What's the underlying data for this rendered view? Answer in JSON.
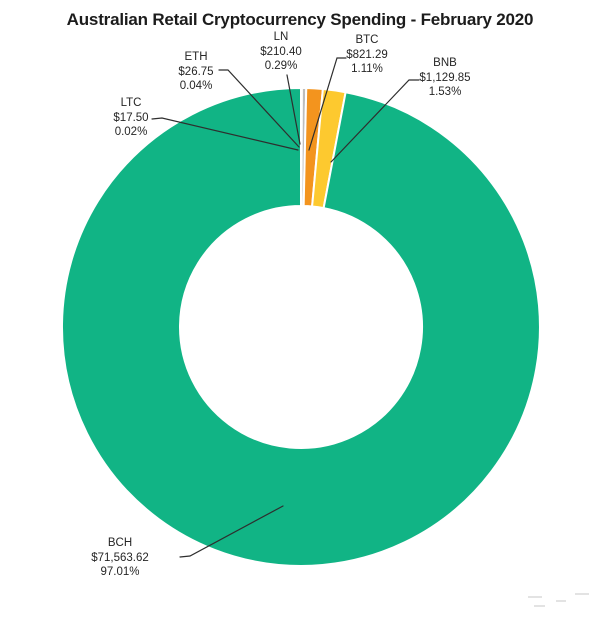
{
  "page": {
    "background": "#ffffff",
    "colors": {
      "text": "#262626",
      "title_text": "#1c1c1c",
      "leader_line": "#2e2e2e",
      "slice_border": "#ffffff"
    }
  },
  "chart_data": {
    "type": "pie",
    "subtype": "donut",
    "title": "Australian Retail Cryptocurrency Spending - February 2020",
    "start_angle_deg": 0,
    "direction": "clockwise",
    "legend": "none",
    "label_style": "callout with name, dollar amount and percent",
    "slices": [
      {
        "name": "LTC",
        "amount_label": "$17.50",
        "value": 17.5,
        "pct": 0.02,
        "pct_label": "0.02%",
        "color": "#d2d2d2"
      },
      {
        "name": "ETH",
        "amount_label": "$26.75",
        "value": 26.75,
        "pct": 0.04,
        "pct_label": "0.04%",
        "color": "#d9d9d9"
      },
      {
        "name": "LN",
        "amount_label": "$210.40",
        "value": 210.4,
        "pct": 0.29,
        "pct_label": "0.29%",
        "color": "#bdbdbd"
      },
      {
        "name": "BTC",
        "amount_label": "$821.29",
        "value": 821.29,
        "pct": 1.11,
        "pct_label": "1.11%",
        "color": "#f3941e"
      },
      {
        "name": "BNB",
        "amount_label": "$1,129.85",
        "value": 1129.85,
        "pct": 1.53,
        "pct_label": "1.53%",
        "color": "#fdc92f"
      },
      {
        "name": "BCH",
        "amount_label": "$71,563.62",
        "value": 71563.62,
        "pct": 97.01,
        "pct_label": "97.01%",
        "color": "#11b485"
      }
    ]
  }
}
